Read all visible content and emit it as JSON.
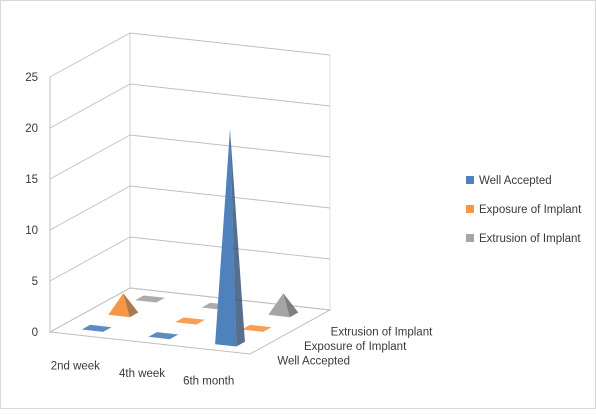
{
  "chart_data": {
    "type": "bar",
    "subtype": "3d-pyramid",
    "title": "",
    "xlabel": "",
    "ylabel": "",
    "ylim": [
      0,
      25
    ],
    "y_ticks": [
      "0",
      "5",
      "10",
      "15",
      "20",
      "25"
    ],
    "categories": [
      "2nd week",
      "4th week",
      "6th month"
    ],
    "series": [
      {
        "name": "Well Accepted",
        "values": [
          0,
          0,
          21
        ],
        "color": "#4f81bd"
      },
      {
        "name": "Exposure of Implant",
        "values": [
          2,
          0,
          0
        ],
        "color": "#f79646"
      },
      {
        "name": "Extrusion of Implant",
        "values": [
          0,
          0,
          2
        ],
        "color": "#a5a5a5"
      }
    ],
    "depth_labels": [
      "Extrusion of Implant",
      "Exposure of Implant",
      "Well Accepted"
    ],
    "legend_position": "right",
    "grid": true
  }
}
